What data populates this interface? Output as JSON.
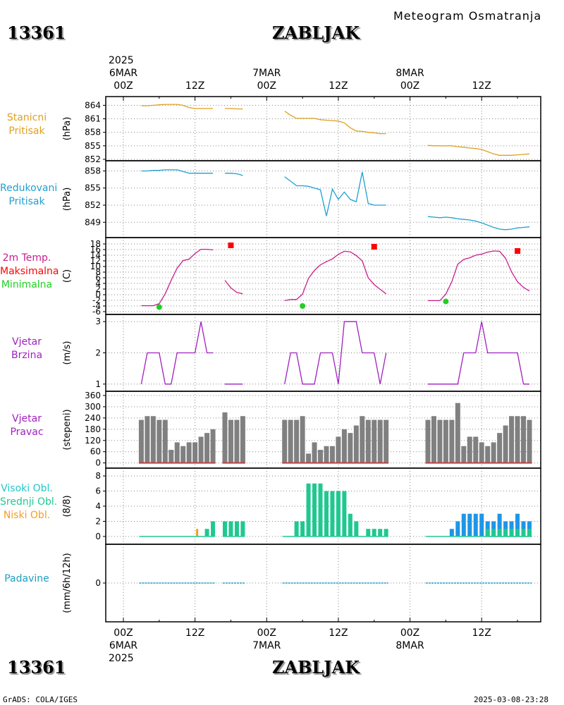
{
  "header": {
    "station_id": "13361",
    "station_name": "ZABLJAK",
    "subtitle": "Meteogram Osmatranja",
    "year": "2025"
  },
  "footer": {
    "credit": "GrADS: COLA/IGES",
    "timestamp": "2025-03-08-23:28"
  },
  "colors": {
    "pressure": "#e0a020",
    "reduced": "#20a0d0",
    "temp": "#c81e8c",
    "tmax": "#ff0000",
    "tmin": "#20d020",
    "wind": "#a020c0",
    "bars": "#808080",
    "high_cloud": "#20c8c8",
    "mid_cloud": "#20c890",
    "low_cloud": "#f0a020",
    "cloud_blue": "#1e96e6",
    "precip": "#20a0c0"
  },
  "time_axis": {
    "top_days": [
      {
        "date": "6MAR",
        "hour": "00Z",
        "h": 0
      },
      {
        "date": "7MAR",
        "hour": "00Z",
        "h": 24
      },
      {
        "date": "8MAR",
        "hour": "00Z",
        "h": 48
      }
    ],
    "noon_ticks": [
      {
        "label": "12Z",
        "h": 12
      },
      {
        "label": "12Z",
        "h": 36
      },
      {
        "label": "12Z",
        "h": 60
      }
    ]
  },
  "chart_data": [
    {
      "type": "line",
      "panel": "pressure",
      "label_lines": [
        "Stanicni",
        "Pritisak"
      ],
      "ylabel": "(hPa)",
      "ylim": [
        852,
        865
      ],
      "yticks": [
        852,
        855,
        858,
        861,
        864
      ],
      "segments": [
        {
          "h": [
            3,
            4,
            5,
            6,
            7,
            8,
            9,
            10,
            11,
            12,
            13,
            14,
            15
          ],
          "v": [
            863.9,
            863.9,
            864.0,
            864.1,
            864.2,
            864.2,
            864.2,
            864.0,
            863.5,
            863.3,
            863.3,
            863.3,
            863.3
          ]
        },
        {
          "h": [
            17,
            18,
            19,
            20
          ],
          "v": [
            863.3,
            863.3,
            863.2,
            863.2
          ]
        },
        {
          "h": [
            27,
            28,
            29,
            30,
            31,
            32,
            33,
            34,
            35,
            36,
            37,
            38,
            39,
            40,
            41,
            42,
            43,
            44
          ],
          "v": [
            862.7,
            861.8,
            861.1,
            861.1,
            861.1,
            861.1,
            860.8,
            860.7,
            860.6,
            860.5,
            860.1,
            859.0,
            858.3,
            858.2,
            858.0,
            857.9,
            857.7,
            857.7
          ]
        },
        {
          "h": [
            51,
            52,
            53,
            54,
            55,
            56,
            57,
            58,
            59,
            60,
            61,
            62,
            63,
            64,
            65,
            66,
            67,
            68
          ],
          "v": [
            855.1,
            855.0,
            855.0,
            855.0,
            855.0,
            854.8,
            854.7,
            854.5,
            854.4,
            854.2,
            853.7,
            853.2,
            852.9,
            852.9,
            852.9,
            853.0,
            853.1,
            853.2
          ]
        }
      ]
    },
    {
      "type": "line",
      "panel": "reduced_pressure",
      "label_lines": [
        "Redukovani",
        "Pritisak"
      ],
      "ylabel": "(hPa)",
      "ylim": [
        847.3,
        858.8
      ],
      "yticks": [
        849,
        852,
        855,
        858
      ],
      "segments": [
        {
          "h": [
            3,
            4,
            5,
            6,
            7,
            8,
            9,
            10,
            11,
            12,
            13,
            14,
            15
          ],
          "v": [
            858.0,
            858.0,
            858.1,
            858.1,
            858.2,
            858.2,
            858.2,
            857.9,
            857.6,
            857.6,
            857.6,
            857.6,
            857.6
          ]
        },
        {
          "h": [
            17,
            18,
            19,
            20
          ],
          "v": [
            857.6,
            857.6,
            857.5,
            857.2
          ]
        },
        {
          "h": [
            27,
            28,
            29,
            30,
            31,
            32,
            33,
            34,
            35,
            36,
            37,
            38,
            39,
            40,
            41,
            42,
            43,
            44
          ],
          "v": [
            857.0,
            856.2,
            855.4,
            855.4,
            855.3,
            855.0,
            854.7,
            850.1,
            854.8,
            853.0,
            854.3,
            853.0,
            852.6,
            857.8,
            852.3,
            852.0,
            852.0,
            852.0
          ]
        },
        {
          "h": [
            51,
            52,
            53,
            54,
            55,
            56,
            57,
            58,
            59,
            60,
            61,
            62,
            63,
            64,
            65,
            66,
            67,
            68
          ],
          "v": [
            850.0,
            849.9,
            849.8,
            849.9,
            849.8,
            849.6,
            849.5,
            849.4,
            849.2,
            848.9,
            848.5,
            848.1,
            847.8,
            847.7,
            847.8,
            848.0,
            848.1,
            848.2
          ]
        }
      ]
    },
    {
      "type": "line",
      "panel": "temperature",
      "label_lines": [
        "2m Temp.",
        "Maksimalna",
        "Minimalna"
      ],
      "ylabel": "(C)",
      "ylim": [
        -6,
        19
      ],
      "yticks": [
        -6,
        -4,
        -2,
        0,
        2,
        4,
        6,
        8,
        10,
        12,
        14,
        16,
        18
      ],
      "segments": [
        {
          "h": [
            3,
            4,
            5,
            6,
            7,
            8,
            9,
            10,
            11,
            12,
            13,
            14,
            15
          ],
          "v": [
            -3.9,
            -3.9,
            -3.9,
            -3.2,
            0.3,
            5.1,
            9.4,
            12.1,
            12.6,
            14.6,
            16.1,
            16.1,
            15.9
          ]
        },
        {
          "h": [
            17,
            18,
            19,
            20
          ],
          "v": [
            5.1,
            2.4,
            0.8,
            0.3
          ]
        },
        {
          "h": [
            27,
            28,
            29,
            30,
            31,
            32,
            33,
            34,
            35,
            36,
            37,
            38,
            39,
            40,
            41,
            42,
            43,
            44
          ],
          "v": [
            -2.1,
            -1.7,
            -1.7,
            0.2,
            5.8,
            8.6,
            10.6,
            11.7,
            12.7,
            14.3,
            15.4,
            15.2,
            13.9,
            12.0,
            6.0,
            3.6,
            1.9,
            0.3
          ]
        },
        {
          "h": [
            51,
            52,
            53,
            54,
            55,
            56,
            57,
            58,
            59,
            60,
            61,
            62,
            63,
            64,
            65,
            66,
            67,
            68
          ],
          "v": [
            -2.1,
            -2.1,
            -2.1,
            0.2,
            4.6,
            10.8,
            12.5,
            13.1,
            14.0,
            14.4,
            15.1,
            15.5,
            15.4,
            12.9,
            8.1,
            4.6,
            2.6,
            1.3
          ]
        }
      ],
      "tmax": [
        {
          "h": 18,
          "v": 17.5
        },
        {
          "h": 42,
          "v": 17.0
        },
        {
          "h": 66,
          "v": 15.5
        }
      ],
      "tmin": [
        {
          "h": 6,
          "v": -4.4
        },
        {
          "h": 30,
          "v": -4.0
        },
        {
          "h": 54,
          "v": -2.4
        }
      ]
    },
    {
      "type": "line",
      "panel": "wind_speed",
      "label_lines": [
        "Vjetar",
        "Brzina"
      ],
      "ylabel": "(m/s)",
      "ylim": [
        0.95,
        3.05
      ],
      "yticks": [
        1,
        2,
        3
      ],
      "segments": [
        {
          "h": [
            3,
            4,
            5,
            6,
            7,
            8,
            9,
            10,
            11,
            12,
            13,
            14,
            15
          ],
          "v": [
            1,
            2,
            2,
            2,
            1,
            1,
            2,
            2,
            2,
            2,
            3,
            2,
            2
          ]
        },
        {
          "h": [
            17,
            18,
            19,
            20
          ],
          "v": [
            1,
            1,
            1,
            1
          ]
        },
        {
          "h": [
            27,
            28,
            29,
            30,
            31,
            32,
            33,
            34,
            35,
            36,
            37,
            38,
            39,
            40,
            41,
            42,
            43,
            44
          ],
          "v": [
            1,
            2,
            2,
            1,
            1,
            1,
            2,
            2,
            2,
            1,
            3,
            3,
            3,
            2,
            2,
            2,
            1,
            2
          ]
        },
        {
          "h": [
            51,
            52,
            53,
            54,
            55,
            56,
            57,
            58,
            59,
            60,
            61,
            62,
            63,
            64,
            65,
            66,
            67,
            68
          ],
          "v": [
            1,
            1,
            1,
            1,
            1,
            1,
            2,
            2,
            2,
            3,
            2,
            2,
            2,
            2,
            2,
            2,
            1,
            1
          ]
        }
      ]
    },
    {
      "type": "bar",
      "panel": "wind_direction",
      "label_lines": [
        "Vjetar",
        "Pravac"
      ],
      "ylabel": "(stepeni)",
      "ylim": [
        -5,
        360
      ],
      "yticks": [
        0,
        60,
        120,
        180,
        240,
        300,
        360
      ],
      "bars": [
        {
          "h": [
            3,
            4,
            5,
            6,
            7,
            8,
            9,
            10,
            11,
            12,
            13,
            14,
            15
          ],
          "v": [
            230,
            250,
            250,
            230,
            230,
            70,
            110,
            90,
            110,
            110,
            140,
            160,
            180
          ]
        },
        {
          "h": [
            17,
            18,
            19,
            20
          ],
          "v": [
            270,
            230,
            230,
            250
          ]
        },
        {
          "h": [
            27,
            28,
            29,
            30,
            31,
            32,
            33,
            34,
            35,
            36,
            37,
            38,
            39,
            40,
            41,
            42,
            43,
            44
          ],
          "v": [
            230,
            230,
            230,
            250,
            50,
            110,
            70,
            90,
            90,
            140,
            180,
            160,
            200,
            250,
            230,
            230,
            230,
            230
          ]
        },
        {
          "h": [
            51,
            52,
            53,
            54,
            55,
            56,
            57,
            58,
            59,
            60,
            61,
            62,
            63,
            64,
            65,
            66,
            67,
            68
          ],
          "v": [
            230,
            250,
            230,
            230,
            230,
            320,
            90,
            140,
            140,
            110,
            90,
            110,
            160,
            200,
            250,
            250,
            250,
            230
          ]
        }
      ]
    },
    {
      "type": "bar",
      "panel": "clouds",
      "label_lines": [
        "Visoki Obl.",
        "Srednji Obl.",
        "Niski Obl."
      ],
      "ylabel": "(8/8)",
      "ylim": [
        -0.1,
        8.1
      ],
      "yticks": [
        0,
        2,
        4,
        6,
        8
      ],
      "mid": [
        {
          "h": [
            3,
            4,
            5,
            6,
            7,
            8,
            9,
            10,
            11,
            12,
            13,
            14,
            15
          ],
          "v": [
            0,
            0,
            0,
            0,
            0,
            0,
            0,
            0,
            0,
            0,
            0,
            1,
            2
          ]
        },
        {
          "h": [
            17,
            18,
            19,
            20
          ],
          "v": [
            2,
            2,
            2,
            2
          ]
        },
        {
          "h": [
            27,
            28,
            29,
            30,
            31,
            32,
            33,
            34,
            35,
            36,
            37,
            38,
            39,
            40,
            41,
            42,
            43,
            44
          ],
          "v": [
            0,
            0,
            2,
            2,
            7,
            7,
            7,
            6,
            6,
            6,
            6,
            3,
            2,
            0,
            1,
            1,
            1,
            1
          ]
        },
        {
          "h": [
            61,
            62,
            63,
            64,
            65,
            66,
            67,
            68
          ],
          "v": [
            1,
            1,
            1,
            1,
            1,
            1,
            1,
            1
          ]
        }
      ],
      "low": [
        {
          "h": [
            13
          ],
          "v": [
            1
          ]
        }
      ],
      "high": [
        {
          "h": [
            55,
            56,
            57,
            58,
            59,
            60,
            61,
            62,
            63,
            64,
            65,
            66,
            67,
            68
          ],
          "v": [
            1,
            2,
            3,
            3,
            3,
            3,
            2,
            2,
            3,
            2,
            2,
            3,
            2,
            2
          ]
        }
      ]
    },
    {
      "type": "bar",
      "panel": "precipitation",
      "label_lines": [
        "Padavine"
      ],
      "ylabel": "(mm/6h/12h)",
      "ylim": [
        -5,
        5
      ],
      "yticks": [
        0
      ],
      "segments": [
        {
          "h": [
            3,
            15
          ],
          "v": [
            0,
            0
          ]
        },
        {
          "h": [
            17,
            20
          ],
          "v": [
            0,
            0
          ]
        },
        {
          "h": [
            27,
            44
          ],
          "v": [
            0,
            0
          ]
        },
        {
          "h": [
            51,
            68
          ],
          "v": [
            0,
            0
          ]
        }
      ]
    }
  ]
}
